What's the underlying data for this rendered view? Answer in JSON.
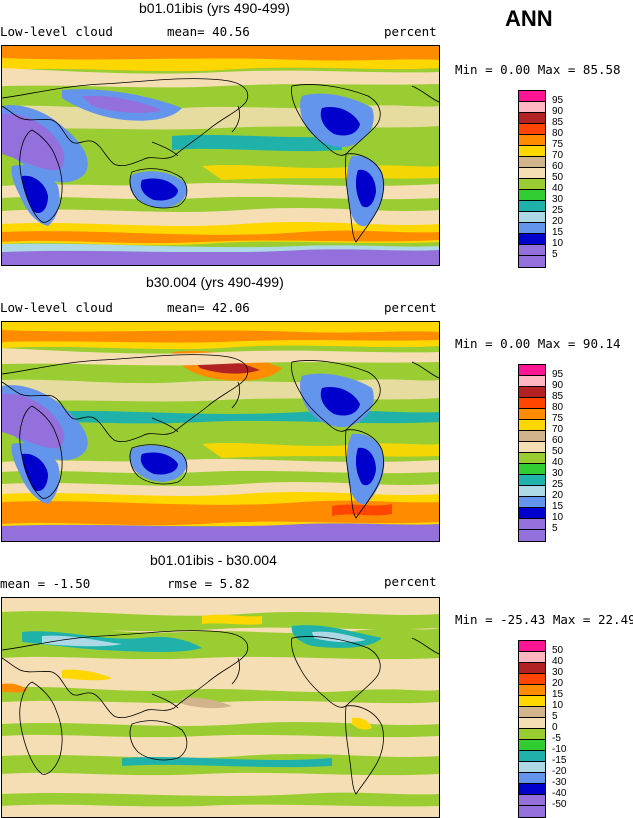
{
  "season": "ANN",
  "panels": [
    {
      "title": "b01.01ibis (yrs 490-499)",
      "left": "Low-level cloud",
      "center": "mean=  40.56",
      "right": "percent",
      "minmax": "Min =   0.00 Max =  85.58",
      "legend_labels": [
        "95",
        "90",
        "85",
        "80",
        "75",
        "70",
        "60",
        "50",
        "40",
        "30",
        "25",
        "20",
        "15",
        "10",
        "5"
      ],
      "legend_colors": [
        "#ff1493",
        "#ffb6c1",
        "#b22222",
        "#ff4500",
        "#ff8c00",
        "#ffd700",
        "#d2b48c",
        "#f5deb3",
        "#9acd32",
        "#32cd32",
        "#20b2aa",
        "#add8e6",
        "#6495ed",
        "#0000cd",
        "#9370db"
      ]
    },
    {
      "title": "b30.004 (yrs 490-499)",
      "left": "Low-level cloud",
      "center": "mean=  42.06",
      "right": "percent",
      "minmax": "Min =   0.00 Max =  90.14",
      "legend_labels": [
        "95",
        "90",
        "85",
        "80",
        "75",
        "70",
        "60",
        "50",
        "40",
        "30",
        "25",
        "20",
        "15",
        "10",
        "5"
      ],
      "legend_colors": [
        "#ff1493",
        "#ffb6c1",
        "#b22222",
        "#ff4500",
        "#ff8c00",
        "#ffd700",
        "#d2b48c",
        "#f5deb3",
        "#9acd32",
        "#32cd32",
        "#20b2aa",
        "#add8e6",
        "#6495ed",
        "#0000cd",
        "#9370db"
      ]
    },
    {
      "title": "b01.01ibis - b30.004",
      "left": "mean =  -1.50",
      "center": "rmse =   5.82",
      "right": "percent",
      "minmax": "Min = -25.43 Max =  22.49",
      "legend_labels": [
        "50",
        "40",
        "30",
        "20",
        "15",
        "10",
        "5",
        "0",
        "-5",
        "-10",
        "-15",
        "-20",
        "-30",
        "-40",
        "-50"
      ],
      "legend_colors": [
        "#ff1493",
        "#ffb6c1",
        "#b22222",
        "#ff4500",
        "#ff8c00",
        "#ffd700",
        "#d2b48c",
        "#f5deb3",
        "#9acd32",
        "#32cd32",
        "#20b2aa",
        "#add8e6",
        "#6495ed",
        "#0000cd",
        "#9370db"
      ]
    }
  ]
}
